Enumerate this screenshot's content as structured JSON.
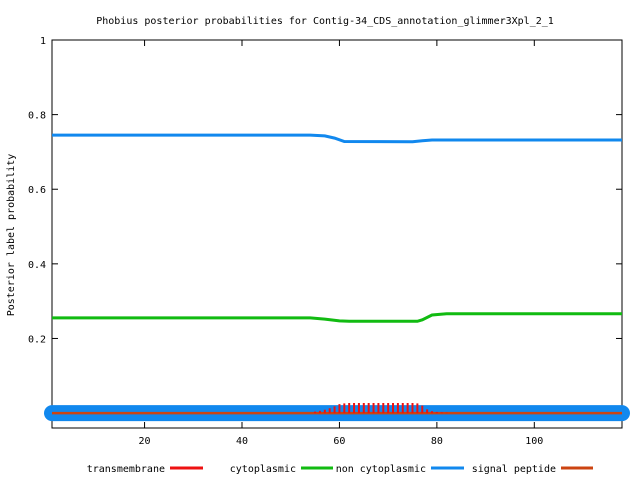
{
  "chart_data": {
    "type": "line",
    "title": "Phobius posterior probabilities for Contig-34_CDS_annotation_glimmer3Xpl_2_1",
    "xlabel": "",
    "ylabel": "Posterior label probability",
    "xlim": [
      1,
      118
    ],
    "ylim": [
      -0.04,
      1
    ],
    "x_ticks": [
      20,
      40,
      60,
      80,
      100
    ],
    "y_ticks": [
      0.2,
      0.4,
      0.6,
      0.8,
      1
    ],
    "y_tick_labels": [
      "0.2",
      "0.4",
      "0.6",
      "0.8",
      "1"
    ],
    "legend_position": "bottom",
    "grid": false,
    "series": [
      {
        "name": "transmembrane",
        "color": "#ee1111",
        "style": "impulses",
        "points": [
          [
            55,
            0.004
          ],
          [
            56,
            0.006
          ],
          [
            57,
            0.009
          ],
          [
            58,
            0.013
          ],
          [
            59,
            0.018
          ],
          [
            60,
            0.024
          ],
          [
            61,
            0.026
          ],
          [
            62,
            0.027
          ],
          [
            63,
            0.027
          ],
          [
            64,
            0.027
          ],
          [
            65,
            0.027
          ],
          [
            66,
            0.027
          ],
          [
            67,
            0.027
          ],
          [
            68,
            0.027
          ],
          [
            69,
            0.027
          ],
          [
            70,
            0.027
          ],
          [
            71,
            0.027
          ],
          [
            72,
            0.027
          ],
          [
            73,
            0.027
          ],
          [
            74,
            0.027
          ],
          [
            75,
            0.027
          ],
          [
            76,
            0.026
          ],
          [
            77,
            0.02
          ],
          [
            78,
            0.01
          ],
          [
            79,
            0.005
          ],
          [
            80,
            0.003
          ],
          [
            81,
            0.002
          ],
          [
            82,
            0.001
          ]
        ]
      },
      {
        "name": "cytoplasmic",
        "color": "#11bb11",
        "style": "line",
        "points": [
          [
            1,
            0.255
          ],
          [
            54,
            0.255
          ],
          [
            57,
            0.252
          ],
          [
            60,
            0.247
          ],
          [
            62,
            0.246
          ],
          [
            76,
            0.246
          ],
          [
            77,
            0.25
          ],
          [
            79,
            0.263
          ],
          [
            82,
            0.266
          ],
          [
            118,
            0.266
          ]
        ]
      },
      {
        "name": "non cytoplasmic",
        "color": "#1188ee",
        "style": "line",
        "points": [
          [
            1,
            0.745
          ],
          [
            54,
            0.745
          ],
          [
            57,
            0.743
          ],
          [
            59,
            0.737
          ],
          [
            61,
            0.728
          ],
          [
            75,
            0.727
          ],
          [
            77,
            0.73
          ],
          [
            79,
            0.732
          ],
          [
            118,
            0.732
          ]
        ]
      },
      {
        "name": "signal peptide",
        "color": "#cc4411",
        "style": "line",
        "points": [
          [
            1,
            0.0
          ],
          [
            118,
            0.0
          ]
        ]
      }
    ]
  }
}
